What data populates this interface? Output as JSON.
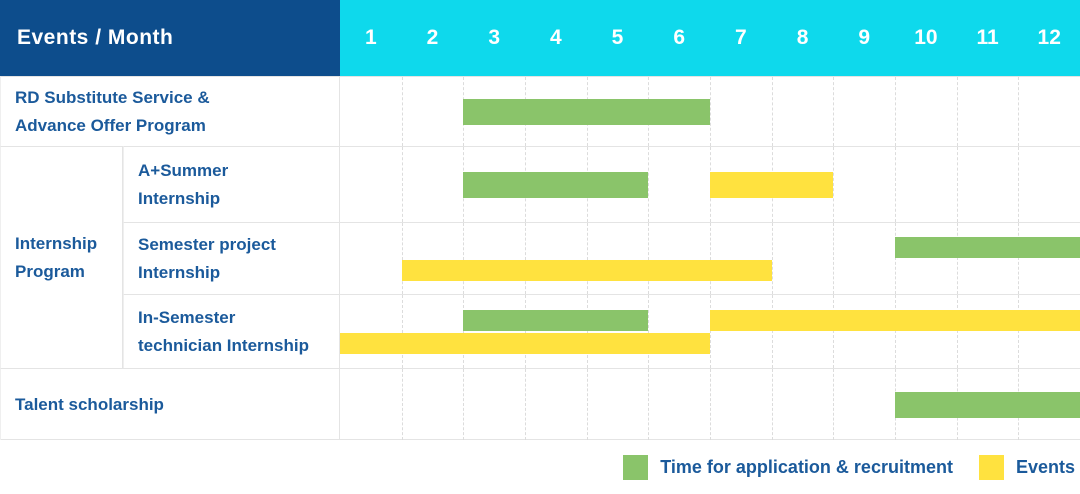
{
  "header": {
    "title": "Events / Month",
    "months": [
      "1",
      "2",
      "3",
      "4",
      "5",
      "6",
      "7",
      "8",
      "9",
      "10",
      "11",
      "12"
    ]
  },
  "table": {
    "row_labels": {
      "rd": "RD Substitute Service &\nAdvance Offer Program",
      "internship_group": "Internship\nProgram",
      "a_summer": "A+Summer\nInternship",
      "semester_project": "Semester project\nInternship",
      "in_semester": "In-Semester\ntechnician Internship",
      "talent": "Talent scholarship"
    }
  },
  "legend": {
    "items": [
      {
        "label": "Time for application & recruitment",
        "color": "#8ac46a"
      },
      {
        "label": "Events",
        "color": "#ffe23f"
      }
    ]
  },
  "colors": {
    "header_navy": "#0d4d8c",
    "header_cyan": "#0ed9ec",
    "label_blue": "#1b5a9b",
    "bar_green": "#8ac46a",
    "bar_yellow": "#ffe23f",
    "grid_line": "#e4e4e4"
  },
  "chart_data": {
    "type": "bar",
    "subtype": "gantt",
    "title": "Events / Month",
    "x_axis": {
      "label": "Month",
      "ticks": [
        1,
        2,
        3,
        4,
        5,
        6,
        7,
        8,
        9,
        10,
        11,
        12
      ],
      "range": [
        1,
        12
      ]
    },
    "grid": "vertical-dashed",
    "legend_position": "bottom-right",
    "series_legend": [
      "Time for application & recruitment",
      "Events"
    ],
    "rows": [
      {
        "group": "",
        "label": "RD Substitute Service & Advance Offer Program",
        "bars": [
          {
            "series": "Time for application & recruitment",
            "color_key": "green",
            "lane": "single",
            "start_month": 3,
            "end_month": 6
          }
        ]
      },
      {
        "group": "Internship Program",
        "label": "A+Summer Internship",
        "bars": [
          {
            "series": "Time for application & recruitment",
            "color_key": "green",
            "lane": "single",
            "start_month": 3,
            "end_month": 5
          },
          {
            "series": "Events",
            "color_key": "yellow",
            "lane": "single",
            "start_month": 7,
            "end_month": 8
          }
        ]
      },
      {
        "group": "Internship Program",
        "label": "Semester project Internship",
        "bars": [
          {
            "series": "Time for application & recruitment",
            "color_key": "green",
            "lane": "top",
            "start_month": 10,
            "end_month": 12
          },
          {
            "series": "Events",
            "color_key": "yellow",
            "lane": "bottom",
            "start_month": 2,
            "end_month": 7
          }
        ]
      },
      {
        "group": "Internship Program",
        "label": "In-Semester technician Internship",
        "bars": [
          {
            "series": "Time for application & recruitment",
            "color_key": "green",
            "lane": "top",
            "start_month": 3,
            "end_month": 5
          },
          {
            "series": "Events",
            "color_key": "yellow",
            "lane": "top",
            "start_month": 7,
            "end_month": 12
          },
          {
            "series": "Events",
            "color_key": "yellow",
            "lane": "bottom",
            "start_month": 1,
            "end_month": 6
          }
        ]
      },
      {
        "group": "",
        "label": "Talent scholarship",
        "bars": [
          {
            "series": "Time for application & recruitment",
            "color_key": "green",
            "lane": "single",
            "start_month": 10,
            "end_month": 12
          }
        ]
      }
    ]
  }
}
